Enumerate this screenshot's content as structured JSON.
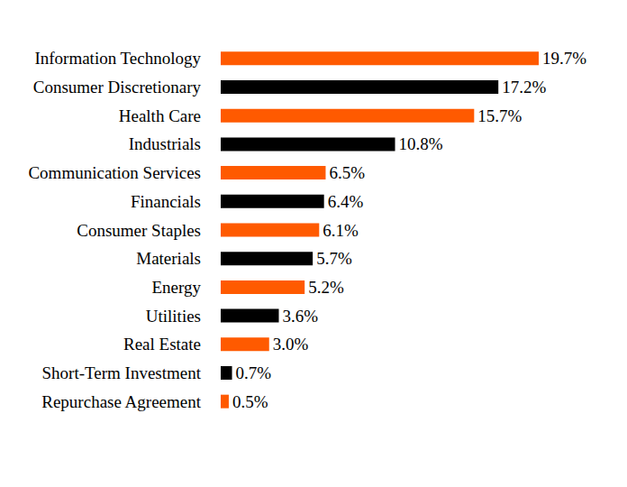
{
  "chart_data": {
    "type": "bar",
    "orientation": "horizontal",
    "categories": [
      "Information Technology",
      "Consumer Discretionary",
      "Health Care",
      "Industrials",
      "Communication Services",
      "Financials",
      "Consumer Staples",
      "Materials",
      "Energy",
      "Utilities",
      "Real Estate",
      "Short-Term Investment",
      "Repurchase Agreement"
    ],
    "values": [
      19.7,
      17.2,
      15.7,
      10.8,
      6.5,
      6.4,
      6.1,
      5.7,
      5.2,
      3.6,
      3.0,
      0.7,
      0.5
    ],
    "value_labels": [
      "19.7%",
      "17.2%",
      "15.7%",
      "10.8%",
      "6.5%",
      "6.4%",
      "6.1%",
      "5.7%",
      "5.2%",
      "3.6%",
      "3.0%",
      "0.7%",
      "0.5%"
    ],
    "colors": [
      "#ff5a00",
      "#000000",
      "#ff5a00",
      "#000000",
      "#ff5a00",
      "#000000",
      "#ff5a00",
      "#000000",
      "#ff5a00",
      "#000000",
      "#ff5a00",
      "#000000",
      "#ff5a00"
    ],
    "data_labels": true,
    "grid": false,
    "tick_labels": "y"
  }
}
